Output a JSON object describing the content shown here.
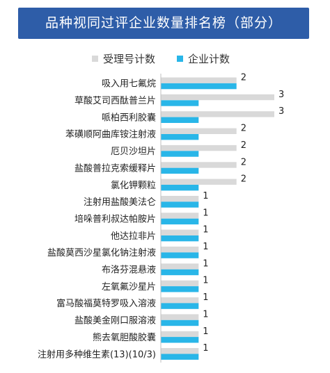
{
  "chart_data": {
    "type": "bar",
    "orientation": "horizontal",
    "title": "品种视同过评企业数量排名榜（部分）",
    "categories": [
      "吸入用七氟烷",
      "草酸艾司西酞普兰片",
      "哌柏西利胶囊",
      "苯磺顺阿曲库铵注射液",
      "厄贝沙坦片",
      "盐酸普拉克索缓释片",
      "氯化钾颗粒",
      "注射用盐酸美法仑",
      "培哚普利叔达帕胺片",
      "他达拉非片",
      "盐酸莫西沙星氯化钠注射液",
      "布洛芬混悬液",
      "左氧氟沙星片",
      "富马酸福莫特罗吸入溶液",
      "盐酸美金刚口服溶液",
      "熊去氧胆酸胶囊",
      "注射用多种维生素(13)(10/3)"
    ],
    "series": [
      {
        "name": "受理号计数",
        "color": "#d9d9d9",
        "values": [
          2,
          3,
          3,
          2,
          2,
          2,
          2,
          1,
          1,
          1,
          1,
          1,
          1,
          1,
          1,
          1,
          1
        ]
      },
      {
        "name": "企业计数",
        "color": "#29b6e8",
        "values": [
          2,
          1,
          1,
          1,
          1,
          1,
          1,
          1,
          1,
          1,
          1,
          1,
          1,
          1,
          1,
          1,
          1
        ]
      }
    ],
    "data_labels": [
      2,
      3,
      3,
      2,
      2,
      2,
      2,
      1,
      1,
      1,
      1,
      1,
      1,
      1,
      1,
      1,
      1
    ],
    "xlim": [
      0,
      3
    ],
    "legend_position": "top",
    "grid": false
  }
}
